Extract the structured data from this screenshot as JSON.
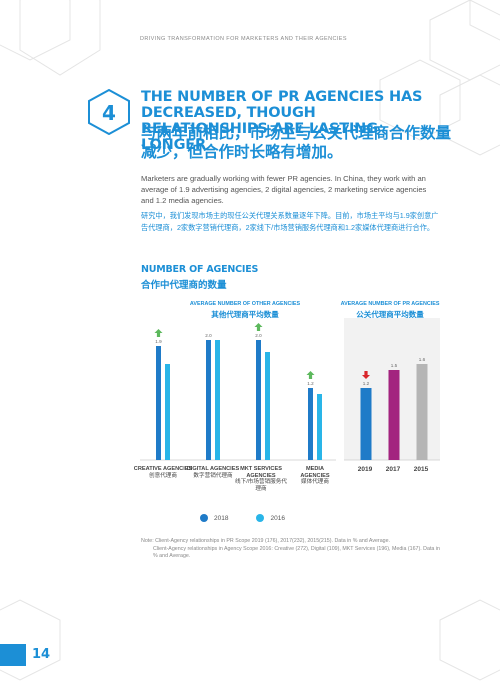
{
  "running_head": "DRIVING TRANSFORMATION FOR MARKETERS AND THEIR AGENCIES",
  "section_number": "4",
  "title_en": "THE NUMBER OF PR AGENCIES HAS DECREASED, THOUGH RELATIONSHIPS ARE LASTING LONGER",
  "title_zh": "与两年前相比，市场主与公关代理商合作数量减少，但合作时长略有增加。",
  "body_en": "Marketers are gradually working with fewer PR agencies. In China, they work with an average of 1.9 advertising agencies, 2 digital agencies, 2 marketing service agencies and 1.2 media agencies.",
  "body_zh": "研究中，我们发现市场主的现任公关代理关系数量逐年下降。目前，市场主平均与1.9家创意广告代理商，2家数字营销代理商，2家线下/市场营销服务代理商和1.2家媒体代理商进行合作。",
  "section_title_en": "NUMBER OF AGENCIES",
  "section_title_zh": "合作中代理商的数量",
  "left_panel": {
    "title_en": "AVERAGE NUMBER OF OTHER AGENCIES",
    "title_zh": "其他代理商平均数量"
  },
  "right_panel": {
    "title_en": "AVERAGE NUMBER OF PR AGENCIES",
    "title_zh": "公关代理商平均数量"
  },
  "categories": [
    {
      "en": "CREATIVE AGENCIES",
      "zh": "创意代理商"
    },
    {
      "en": "DIGITAL AGENCIES",
      "zh": "数字营销代理商"
    },
    {
      "en": "MKT SERVICES AGENCIES",
      "zh": "线下/市场营销服务代理商"
    },
    {
      "en": "MEDIA AGENCIES",
      "zh": "媒体代理商"
    }
  ],
  "legend": {
    "a": "2018",
    "b": "2016"
  },
  "note_line1": "Note: Client-Agency relationships in PR Scope 2019 (176), 2017(232), 2015(215). Data in % and Average.",
  "note_line2": "Client-Agency relationships in Agency Scope 2016: Creative (272), Digital (109), MKT Services (196), Media (167). Data in % and Average.",
  "page_number": "14",
  "colors": {
    "brand_blue": "#1c8fd6",
    "bar_2018": "#1f7bc8",
    "bar_2016": "#29b5e8",
    "pr_2019": "#1f7bc8",
    "pr_2017": "#a3247f",
    "pr_2015": "#b5b5b5",
    "arrow_up": "#5cb85c",
    "arrow_down": "#d9262b"
  },
  "chart_data": [
    {
      "type": "bar",
      "title": "AVERAGE NUMBER OF OTHER AGENCIES 其他代理商平均数量",
      "categories": [
        "CREATIVE AGENCIES",
        "DIGITAL AGENCIES",
        "MKT SERVICES AGENCIES",
        "MEDIA AGENCIES"
      ],
      "series": [
        {
          "name": "2018",
          "values": [
            1.9,
            2.0,
            2.0,
            1.2
          ]
        },
        {
          "name": "2016",
          "values": [
            1.6,
            2.0,
            1.8,
            1.1
          ]
        }
      ],
      "data_labels": [
        "1.9",
        "2.0",
        "2.0",
        "1.2"
      ],
      "trend": [
        "up",
        "none",
        "up",
        "up"
      ],
      "ylim": [
        0,
        2.2
      ]
    },
    {
      "type": "bar",
      "title": "AVERAGE NUMBER OF PR AGENCIES 公关代理商平均数量",
      "categories": [
        "2019",
        "2017",
        "2015"
      ],
      "values": [
        1.2,
        1.5,
        1.6
      ],
      "data_labels": [
        "1.2",
        "1.5",
        "1.6"
      ],
      "trend": [
        "down",
        "none",
        "none"
      ],
      "ylim": [
        0,
        2.2
      ]
    }
  ]
}
